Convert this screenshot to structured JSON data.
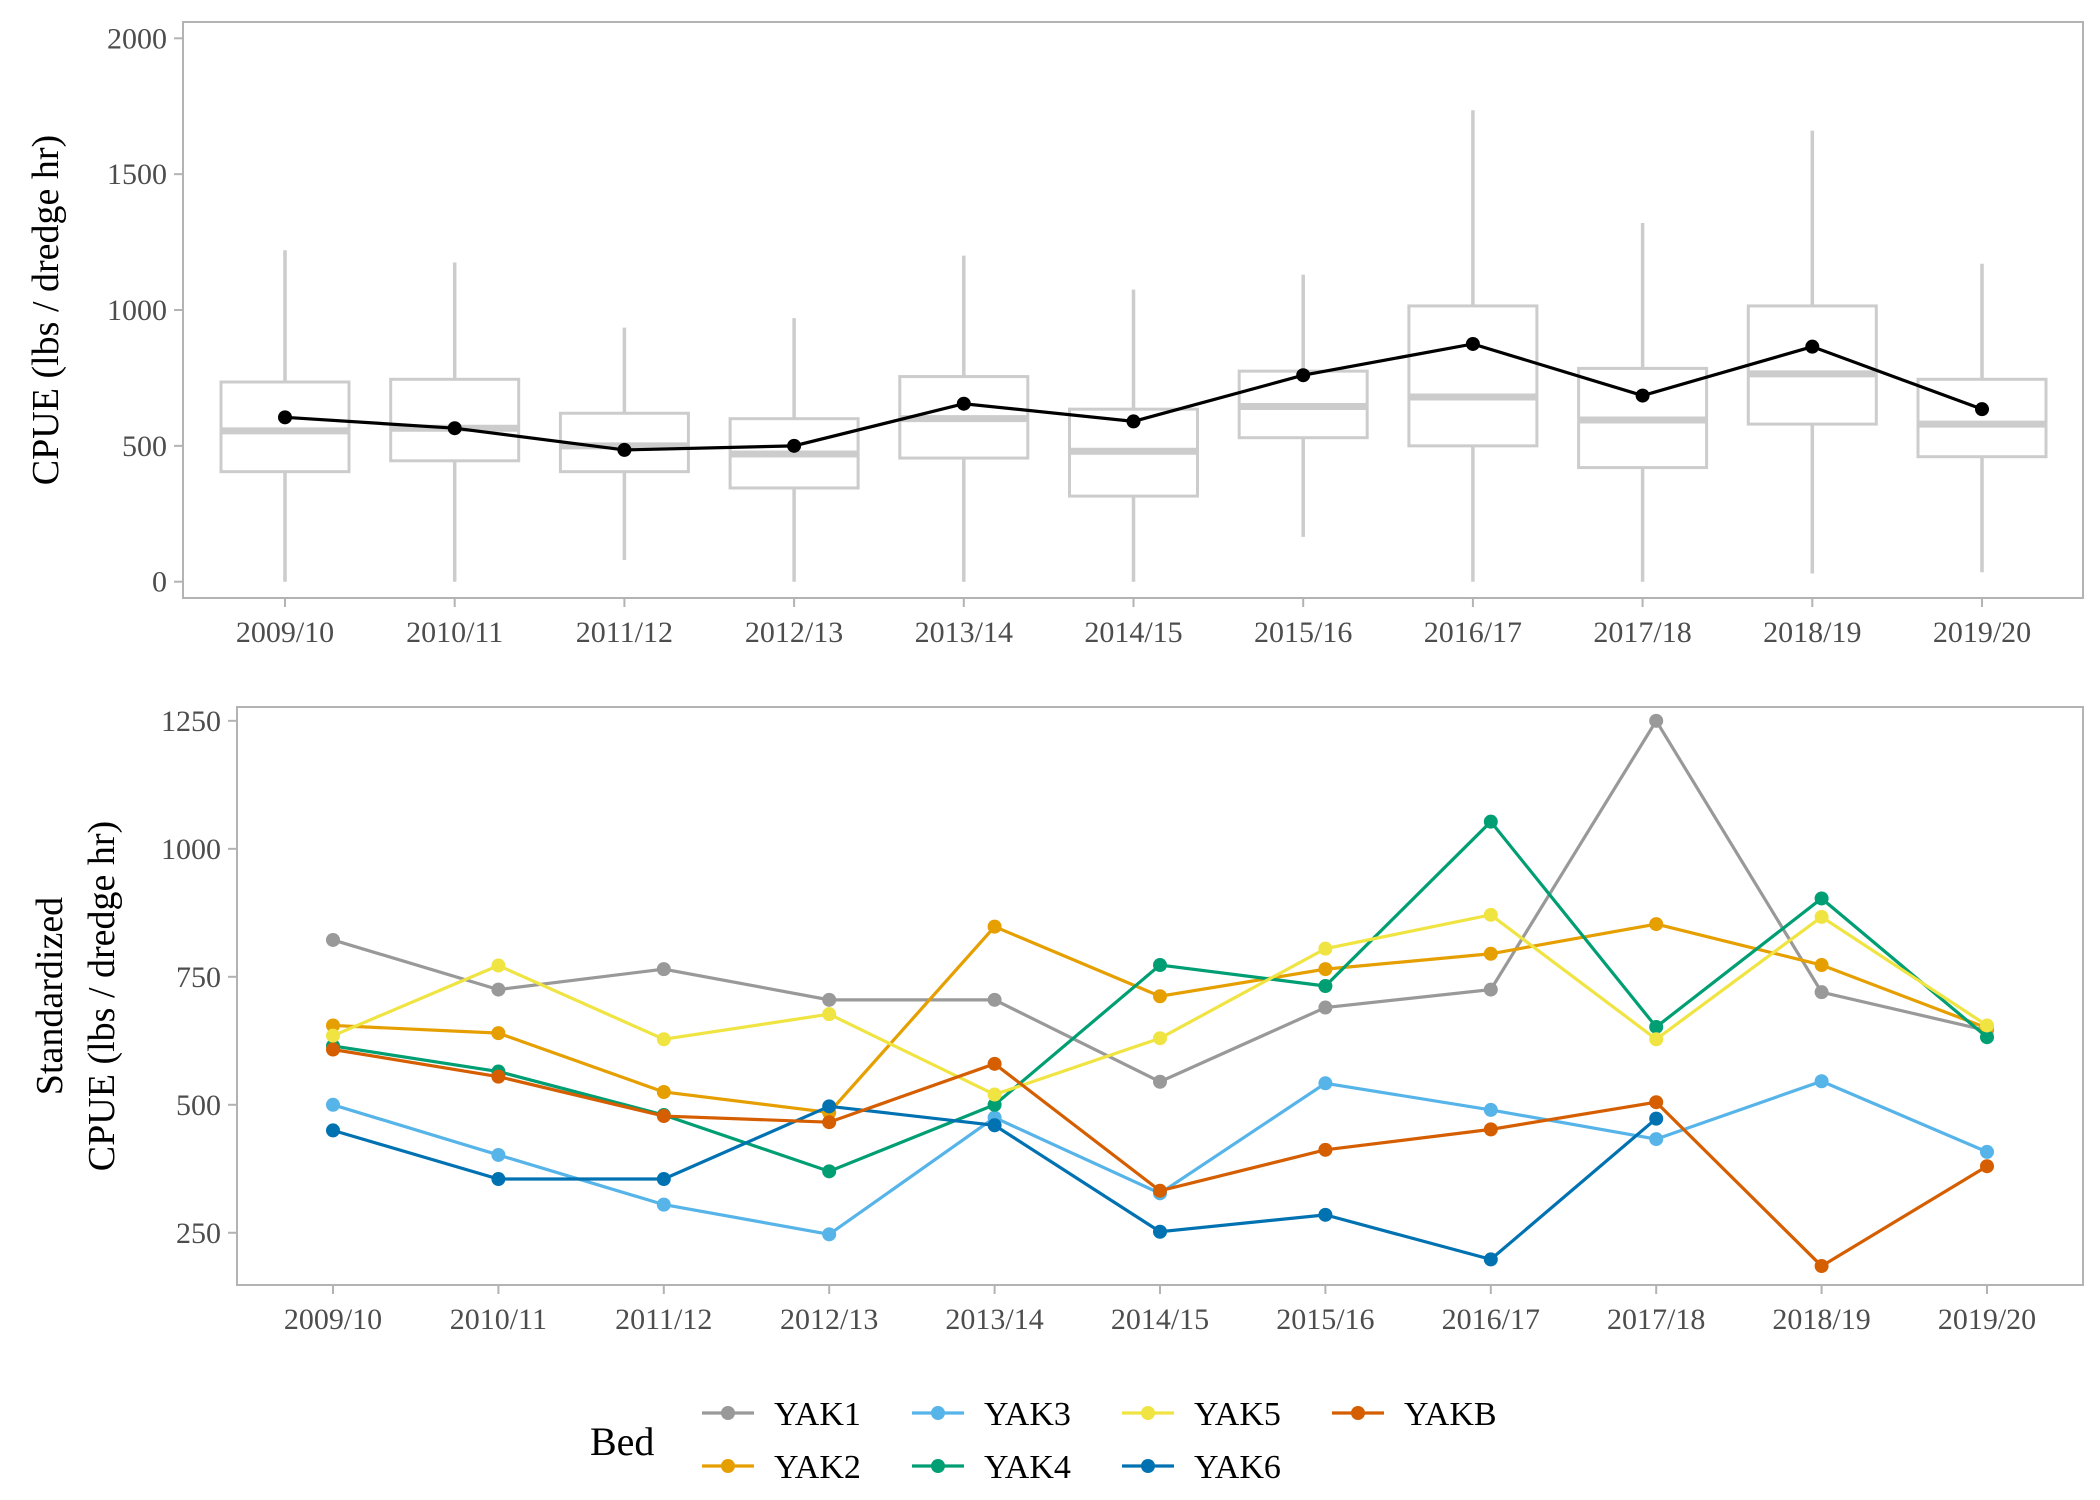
{
  "chart_data": [
    {
      "type": "box",
      "ylabel": "CPUE (lbs / dredge hr)",
      "ylim": [
        -60,
        2060
      ],
      "yticks": [
        0,
        500,
        1000,
        1500,
        2000
      ],
      "categories": [
        "2009/10",
        "2010/11",
        "2011/12",
        "2012/13",
        "2013/14",
        "2014/15",
        "2015/16",
        "2016/17",
        "2017/18",
        "2018/19",
        "2019/20"
      ],
      "boxes": [
        {
          "whisker_low": 0,
          "q1": 405,
          "median": 555,
          "q3": 735,
          "whisker_high": 1220
        },
        {
          "whisker_low": 0,
          "q1": 445,
          "median": 565,
          "q3": 745,
          "whisker_high": 1175
        },
        {
          "whisker_low": 80,
          "q1": 405,
          "median": 500,
          "q3": 620,
          "whisker_high": 935
        },
        {
          "whisker_low": 0,
          "q1": 345,
          "median": 470,
          "q3": 600,
          "whisker_high": 970
        },
        {
          "whisker_low": 0,
          "q1": 455,
          "median": 600,
          "q3": 755,
          "whisker_high": 1200
        },
        {
          "whisker_low": 0,
          "q1": 315,
          "median": 480,
          "q3": 635,
          "whisker_high": 1075
        },
        {
          "whisker_low": 165,
          "q1": 530,
          "median": 645,
          "q3": 775,
          "whisker_high": 1130
        },
        {
          "whisker_low": 0,
          "q1": 500,
          "median": 680,
          "q3": 1015,
          "whisker_high": 1735
        },
        {
          "whisker_low": 0,
          "q1": 420,
          "median": 595,
          "q3": 785,
          "whisker_high": 1320
        },
        {
          "whisker_low": 30,
          "q1": 580,
          "median": 765,
          "q3": 1015,
          "whisker_high": 1660
        },
        {
          "whisker_low": 35,
          "q1": 460,
          "median": 580,
          "q3": 745,
          "whisker_high": 1170
        }
      ],
      "mean_line": [
        605,
        565,
        485,
        500,
        655,
        590,
        760,
        875,
        685,
        865,
        635
      ],
      "colors": {
        "box": "#cccccc",
        "line": "#000000"
      }
    },
    {
      "type": "line",
      "ylabel_lines": [
        "Standardized",
        "CPUE (lbs / dredge hr)"
      ],
      "ylim": [
        148,
        1277
      ],
      "yticks": [
        250,
        500,
        750,
        1000,
        1250
      ],
      "categories": [
        "2009/10",
        "2010/11",
        "2011/12",
        "2012/13",
        "2013/14",
        "2014/15",
        "2015/16",
        "2016/17",
        "2017/18",
        "2018/19",
        "2019/20"
      ],
      "legend": {
        "title": "Bed",
        "position": "bottom"
      },
      "series": [
        {
          "name": "YAK1",
          "color": "#999999",
          "values": [
            822,
            725,
            765,
            705,
            705,
            545,
            690,
            725,
            1250,
            720,
            645
          ]
        },
        {
          "name": "YAK2",
          "color": "#E69F00",
          "values": [
            655,
            640,
            525,
            485,
            848,
            712,
            765,
            795,
            853,
            773,
            650
          ]
        },
        {
          "name": "YAK3",
          "color": "#56B4E9",
          "values": [
            500,
            402,
            305,
            247,
            475,
            327,
            542,
            490,
            433,
            546,
            408
          ]
        },
        {
          "name": "YAK4",
          "color": "#009E73",
          "values": [
            615,
            565,
            480,
            370,
            500,
            773,
            732,
            1053,
            652,
            903,
            632
          ]
        },
        {
          "name": "YAK5",
          "color": "#F0E442",
          "values": [
            635,
            772,
            628,
            677,
            520,
            630,
            805,
            871,
            628,
            867,
            655
          ]
        },
        {
          "name": "YAK6",
          "color": "#0072B2",
          "values": [
            450,
            355,
            355,
            497,
            460,
            252,
            285,
            198,
            473,
            null,
            null
          ]
        },
        {
          "name": "YAKB",
          "color": "#D55E00",
          "values": [
            608,
            555,
            478,
            466,
            580,
            332,
            412,
            452,
            505,
            185,
            380
          ]
        }
      ]
    }
  ]
}
